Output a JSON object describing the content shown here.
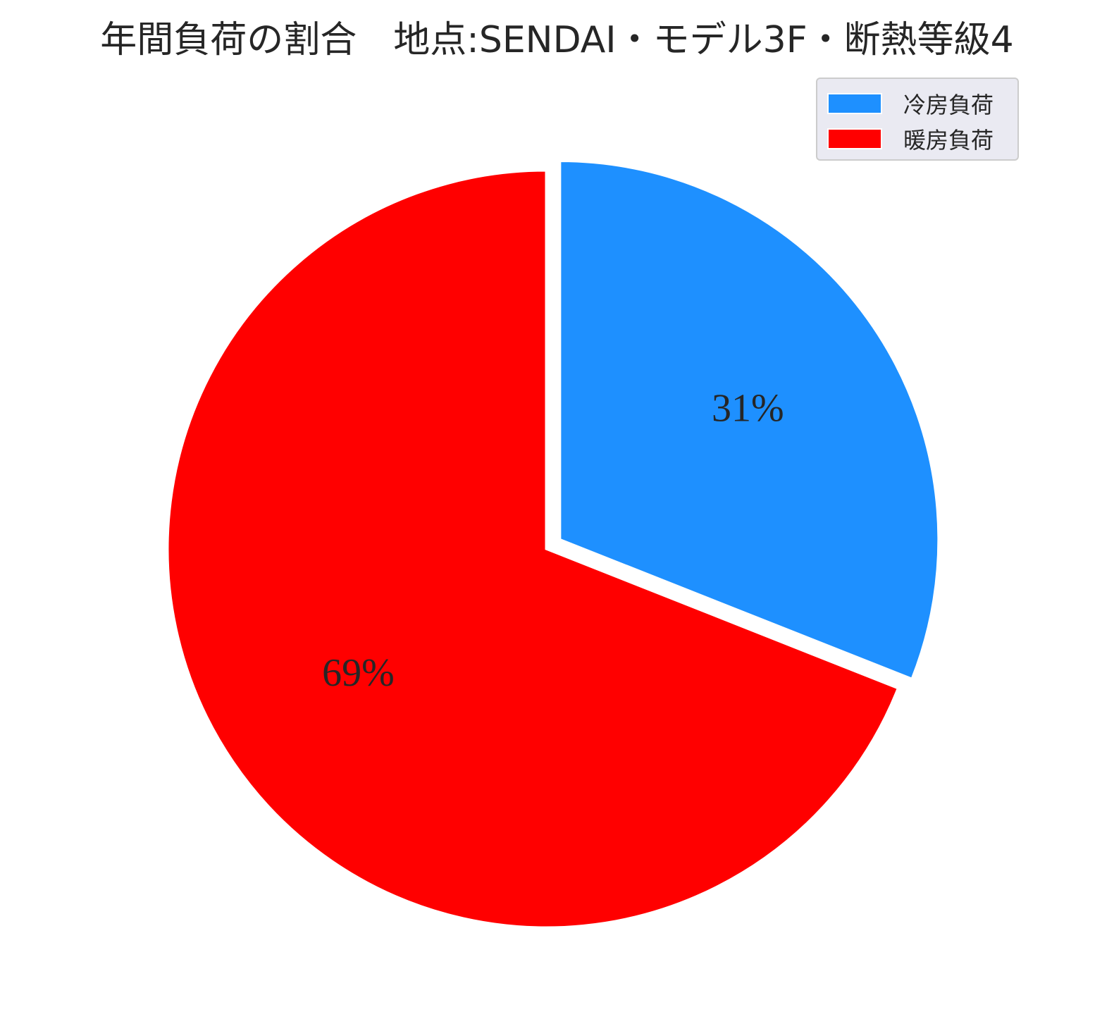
{
  "chart_data": {
    "type": "pie",
    "title": "年間負荷の割合　地点:SENDAI・モデル3F・断熱等級4",
    "categories": [
      "冷房負荷",
      "暖房負荷"
    ],
    "values": [
      31,
      69
    ],
    "labels": [
      "31%",
      "69%"
    ],
    "colors": [
      "#1e90ff",
      "#ff0000"
    ],
    "start_angle": "12 o'clock",
    "direction": "clockwise",
    "explode": "冷房負荷 slice offset outward",
    "legend": {
      "placement": "top-right",
      "entries": [
        "冷房負荷",
        "暖房負荷"
      ]
    }
  }
}
